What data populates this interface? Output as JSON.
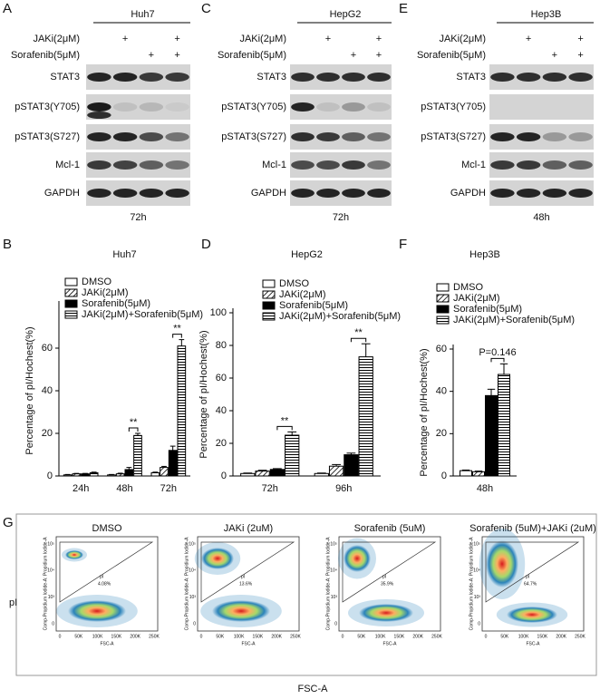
{
  "blots": [
    {
      "letter": "A",
      "cell_line": "Huh7",
      "treatments": [
        {
          "label": "JAKi(2μM)",
          "lanes": [
            null,
            "+",
            null,
            "+"
          ]
        },
        {
          "label": "Sorafenib(5μM)",
          "lanes": [
            null,
            null,
            "+",
            "+"
          ]
        }
      ],
      "proteins": [
        "STAT3",
        "pSTAT3(Y705)",
        "pSTAT3(S727)",
        "Mcl-1",
        "GAPDH"
      ],
      "time": "72h"
    },
    {
      "letter": "C",
      "cell_line": "HepG2",
      "treatments": [
        {
          "label": "JAKi(2μM)",
          "lanes": [
            null,
            "+",
            null,
            "+"
          ]
        },
        {
          "label": "Sorafenib(5μM)",
          "lanes": [
            null,
            null,
            "+",
            "+"
          ]
        }
      ],
      "proteins": [
        "STAT3",
        "pSTAT3(Y705)",
        "pSTAT3(S727)",
        "Mcl-1",
        "GAPDH"
      ],
      "time": "72h"
    },
    {
      "letter": "E",
      "cell_line": "Hep3B",
      "treatments": [
        {
          "label": "JAKi(2μM)",
          "lanes": [
            null,
            "+",
            null,
            "+"
          ]
        },
        {
          "label": "Sorafenib(5μM)",
          "lanes": [
            null,
            null,
            "+",
            "+"
          ]
        }
      ],
      "proteins": [
        "STAT3",
        "pSTAT3(Y705)",
        "pSTAT3(S727)",
        "Mcl-1",
        "GAPDH"
      ],
      "time": "48h"
    }
  ],
  "chart_data": [
    {
      "type": "bar",
      "letter": "B",
      "title": "Huh7",
      "y_label": "Percentage of pI/Hochest(%)",
      "categories": [
        "24h",
        "48h",
        "72h"
      ],
      "legend": "upper left",
      "series": [
        {
          "name": "DMSO",
          "color": "#000000",
          "pattern": "none",
          "values": [
            0.5,
            0.5,
            1.5
          ],
          "errors": [
            0.2,
            0.2,
            0.3
          ]
        },
        {
          "name": "JAKi(2μM)",
          "color": "#000000",
          "pattern": "diagonal",
          "values": [
            1,
            1,
            4
          ],
          "errors": [
            0.2,
            0.3,
            0.5
          ]
        },
        {
          "name": "Sorafenib(5μM)",
          "color": "#000000",
          "pattern": "solid",
          "values": [
            1,
            3,
            12
          ],
          "errors": [
            0.2,
            1,
            2
          ]
        },
        {
          "name": "JAKi(2μM)+Sorafenib(5μM)",
          "color": "#000000",
          "pattern": "horizontal",
          "values": [
            1.5,
            19,
            61
          ],
          "errors": [
            0.3,
            1,
            3
          ]
        }
      ],
      "ylim": [
        0,
        80
      ],
      "yticks": [
        0,
        20,
        40,
        60
      ],
      "annotations": [
        "**",
        "**"
      ]
    },
    {
      "type": "bar",
      "letter": "D",
      "title": "HepG2",
      "y_label": "Percentage of pI/Hochest(%)",
      "categories": [
        "72h",
        "96h"
      ],
      "legend": "upper left",
      "series": [
        {
          "name": "DMSO",
          "color": "#000000",
          "pattern": "none",
          "values": [
            1.5,
            1.5
          ],
          "errors": [
            0.3,
            0.3
          ]
        },
        {
          "name": "JAKi(2μM)",
          "color": "#000000",
          "pattern": "diagonal",
          "values": [
            3,
            6
          ],
          "errors": [
            0.5,
            1
          ]
        },
        {
          "name": "Sorafenib(5μM)",
          "color": "#000000",
          "pattern": "solid",
          "values": [
            4,
            13
          ],
          "errors": [
            0.5,
            1
          ]
        },
        {
          "name": "JAKi(2μM)+Sorafenib(5μM)",
          "color": "#000000",
          "pattern": "horizontal",
          "values": [
            25,
            73
          ],
          "errors": [
            2,
            8
          ]
        }
      ],
      "ylim": [
        0,
        100
      ],
      "yticks": [
        0,
        20,
        40,
        60,
        80,
        100
      ],
      "annotations": [
        "**",
        "**"
      ]
    },
    {
      "type": "bar",
      "letter": "F",
      "title": "Hep3B",
      "y_label": "Percentage of pI/Hochest(%)",
      "categories": [
        "48h"
      ],
      "legend": "upper left",
      "series": [
        {
          "name": "DMSO",
          "color": "#000000",
          "pattern": "none",
          "values": [
            2.5
          ],
          "errors": [
            0.3
          ]
        },
        {
          "name": "JAKi(2μM)",
          "color": "#000000",
          "pattern": "diagonal",
          "values": [
            2
          ],
          "errors": [
            0.3
          ]
        },
        {
          "name": "Sorafenib(5μM)",
          "color": "#000000",
          "pattern": "solid",
          "values": [
            38
          ],
          "errors": [
            3
          ]
        },
        {
          "name": "JAKi(2μM)+Sorafenib(5μM)",
          "color": "#000000",
          "pattern": "horizontal",
          "values": [
            48
          ],
          "errors": [
            5
          ]
        }
      ],
      "ylim": [
        0,
        60
      ],
      "yticks": [
        0,
        20,
        40,
        60
      ],
      "annotations": [
        "P=0.146"
      ]
    }
  ],
  "flow": {
    "letter": "G",
    "y_label": "pI",
    "x_label": "FSC-A",
    "axis_x_label": "FSC-A",
    "axis_y_label": "Comp-Propidium Iodide-A: Propidium Iodide-A",
    "xticks": [
      "0",
      "50K",
      "100K",
      "150K",
      "200K",
      "250K"
    ],
    "yticks": [
      "0",
      "10³",
      "10⁴",
      "10⁵"
    ],
    "panels": [
      {
        "title": "DMSO",
        "gate": "pI",
        "percent": "4.08%"
      },
      {
        "title": "JAKi (2uM)",
        "gate": "pI",
        "percent": "13.6%"
      },
      {
        "title": "Sorafenib (5uM)",
        "gate": "pI",
        "percent": "35.9%"
      },
      {
        "title": "Sorafenib (5uM)+JAKi (2uM)",
        "gate": "pI",
        "percent": "64.7%"
      }
    ]
  }
}
